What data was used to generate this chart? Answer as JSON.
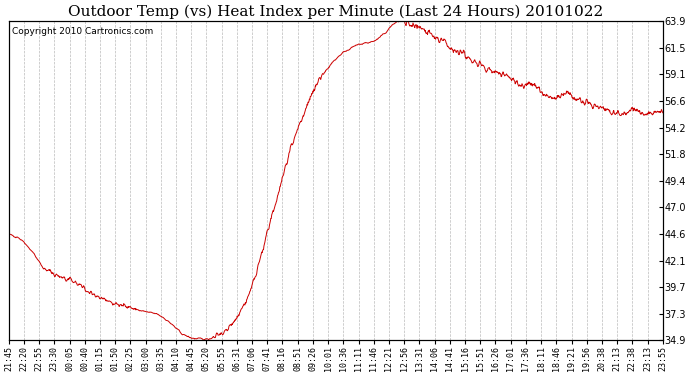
{
  "title": "Outdoor Temp (vs) Heat Index per Minute (Last 24 Hours) 20101022",
  "copyright": "Copyright 2010 Cartronics.com",
  "line_color": "#cc0000",
  "background_color": "#ffffff",
  "grid_color": "#bbbbbb",
  "yticks": [
    34.9,
    37.3,
    39.7,
    42.1,
    44.6,
    47.0,
    49.4,
    51.8,
    54.2,
    56.6,
    59.1,
    61.5,
    63.9
  ],
  "ylim": [
    34.9,
    63.9
  ],
  "xtick_labels": [
    "21:45",
    "22:20",
    "22:55",
    "23:30",
    "00:05",
    "00:40",
    "01:15",
    "01:50",
    "02:25",
    "03:00",
    "03:35",
    "04:10",
    "04:45",
    "05:20",
    "05:55",
    "06:31",
    "07:06",
    "07:41",
    "08:16",
    "08:51",
    "09:26",
    "10:01",
    "10:36",
    "11:11",
    "11:46",
    "12:21",
    "12:56",
    "13:31",
    "14:06",
    "14:41",
    "15:16",
    "15:51",
    "16:26",
    "17:01",
    "17:36",
    "18:11",
    "18:46",
    "19:21",
    "19:56",
    "20:38",
    "21:13",
    "22:38",
    "23:13",
    "23:55"
  ],
  "title_fontsize": 11,
  "copyright_fontsize": 6.5,
  "tick_fontsize": 6,
  "ytick_fontsize": 7,
  "waypoints": [
    [
      0,
      44.5
    ],
    [
      20,
      44.3
    ],
    [
      35,
      43.8
    ],
    [
      55,
      42.8
    ],
    [
      75,
      41.5
    ],
    [
      95,
      41.0
    ],
    [
      110,
      40.7
    ],
    [
      130,
      40.4
    ],
    [
      150,
      40.1
    ],
    [
      165,
      39.6
    ],
    [
      185,
      39.1
    ],
    [
      205,
      38.7
    ],
    [
      225,
      38.4
    ],
    [
      245,
      38.1
    ],
    [
      265,
      37.9
    ],
    [
      280,
      37.7
    ],
    [
      295,
      37.55
    ],
    [
      310,
      37.4
    ],
    [
      325,
      37.3
    ],
    [
      340,
      37.0
    ],
    [
      355,
      36.5
    ],
    [
      368,
      36.0
    ],
    [
      378,
      35.6
    ],
    [
      390,
      35.3
    ],
    [
      400,
      35.15
    ],
    [
      410,
      35.05
    ],
    [
      420,
      35.0
    ],
    [
      430,
      35.0
    ],
    [
      440,
      35.05
    ],
    [
      455,
      35.2
    ],
    [
      470,
      35.5
    ],
    [
      485,
      36.0
    ],
    [
      500,
      36.8
    ],
    [
      515,
      37.8
    ],
    [
      530,
      39.2
    ],
    [
      545,
      41.0
    ],
    [
      560,
      43.2
    ],
    [
      575,
      45.5
    ],
    [
      590,
      47.8
    ],
    [
      605,
      50.0
    ],
    [
      618,
      52.0
    ],
    [
      630,
      53.5
    ],
    [
      643,
      54.8
    ],
    [
      655,
      56.0
    ],
    [
      667,
      57.2
    ],
    [
      678,
      58.2
    ],
    [
      690,
      59.0
    ],
    [
      702,
      59.6
    ],
    [
      714,
      60.2
    ],
    [
      726,
      60.7
    ],
    [
      738,
      61.1
    ],
    [
      750,
      61.4
    ],
    [
      762,
      61.6
    ],
    [
      774,
      61.8
    ],
    [
      786,
      61.9
    ],
    [
      798,
      62.0
    ],
    [
      810,
      62.2
    ],
    [
      820,
      62.5
    ],
    [
      828,
      62.8
    ],
    [
      835,
      63.1
    ],
    [
      841,
      63.4
    ],
    [
      847,
      63.6
    ],
    [
      853,
      63.8
    ],
    [
      858,
      63.9
    ],
    [
      865,
      63.9
    ],
    [
      872,
      63.85
    ],
    [
      880,
      63.7
    ],
    [
      890,
      63.5
    ],
    [
      900,
      63.3
    ],
    [
      912,
      63.1
    ],
    [
      924,
      62.8
    ],
    [
      936,
      62.5
    ],
    [
      948,
      62.2
    ],
    [
      960,
      61.9
    ],
    [
      972,
      61.6
    ],
    [
      984,
      61.3
    ],
    [
      996,
      61.0
    ],
    [
      1010,
      60.6
    ],
    [
      1024,
      60.2
    ],
    [
      1038,
      59.9
    ],
    [
      1052,
      59.6
    ],
    [
      1066,
      59.4
    ],
    [
      1080,
      59.2
    ],
    [
      1090,
      59.0
    ],
    [
      1100,
      58.8
    ],
    [
      1110,
      58.6
    ],
    [
      1118,
      58.3
    ],
    [
      1126,
      58.0
    ],
    [
      1132,
      57.9
    ],
    [
      1140,
      58.1
    ],
    [
      1148,
      58.3
    ],
    [
      1155,
      58.2
    ],
    [
      1162,
      57.9
    ],
    [
      1170,
      57.5
    ],
    [
      1180,
      57.2
    ],
    [
      1192,
      57.0
    ],
    [
      1205,
      56.9
    ],
    [
      1215,
      57.1
    ],
    [
      1225,
      57.4
    ],
    [
      1235,
      57.3
    ],
    [
      1245,
      57.0
    ],
    [
      1255,
      56.7
    ],
    [
      1268,
      56.4
    ],
    [
      1282,
      56.2
    ],
    [
      1295,
      56.1
    ],
    [
      1308,
      56.0
    ],
    [
      1320,
      55.8
    ],
    [
      1332,
      55.6
    ],
    [
      1342,
      55.5
    ],
    [
      1352,
      55.6
    ],
    [
      1362,
      55.8
    ],
    [
      1372,
      55.9
    ],
    [
      1382,
      55.7
    ],
    [
      1392,
      55.5
    ],
    [
      1402,
      55.4
    ],
    [
      1412,
      55.5
    ],
    [
      1422,
      55.6
    ],
    [
      1432,
      55.6
    ],
    [
      1440,
      55.5
    ]
  ]
}
